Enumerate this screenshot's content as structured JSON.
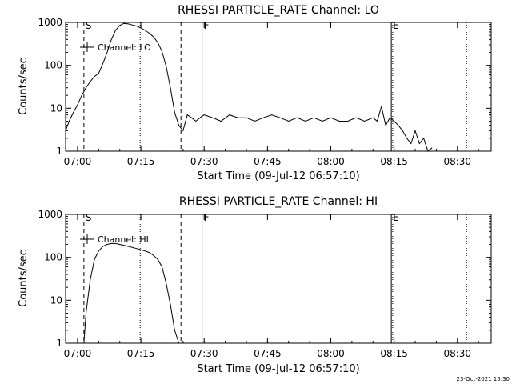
{
  "chart_data": [
    {
      "type": "line",
      "title": "RHESSI PARTICLE_RATE Channel: LO",
      "xlabel": "Start Time (09-Jul-12 06:57:10)",
      "ylabel": "Counts/sec",
      "yscale": "log",
      "ylim": [
        1,
        1000
      ],
      "ytick_labels": [
        "1",
        "10",
        "100",
        "1000"
      ],
      "xlim": [
        "06:57:10",
        "08:38:00"
      ],
      "xtick_labels": [
        "07:00",
        "07:15",
        "07:30",
        "07:45",
        "08:00",
        "08:15",
        "08:30"
      ],
      "legend": {
        "label": "Channel: LO",
        "placement": "upper-left"
      },
      "markers": [
        {
          "label": "S",
          "time": "07:01:30",
          "style": "dashed"
        },
        {
          "label": "",
          "time": "07:14:50",
          "style": "dotted"
        },
        {
          "label": "",
          "time": "07:24:30",
          "style": "dashed"
        },
        {
          "label": "F",
          "time": "07:29:30",
          "style": "solid"
        },
        {
          "label": "E",
          "time": "08:14:20",
          "style": "solid"
        },
        {
          "label": "",
          "time": "08:14:40",
          "style": "dotted"
        },
        {
          "label": "",
          "time": "08:32:10",
          "style": "dotted"
        }
      ],
      "series": [
        {
          "name": "Channel: LO",
          "x": [
            "06:57:10",
            "06:58:00",
            "06:59:00",
            "07:00:00",
            "07:01:00",
            "07:02:00",
            "07:03:00",
            "07:04:00",
            "07:05:00",
            "07:06:00",
            "07:07:00",
            "07:08:00",
            "07:09:00",
            "07:10:00",
            "07:11:00",
            "07:12:00",
            "07:13:00",
            "07:14:00",
            "07:15:00",
            "07:16:00",
            "07:17:00",
            "07:18:00",
            "07:19:00",
            "07:20:00",
            "07:21:00",
            "07:22:00",
            "07:23:00",
            "07:24:00",
            "07:25:00",
            "07:26:00",
            "07:27:00",
            "07:28:00",
            "07:29:00",
            "07:30:00",
            "07:32:00",
            "07:34:00",
            "07:36:00",
            "07:38:00",
            "07:40:00",
            "07:42:00",
            "07:44:00",
            "07:46:00",
            "07:48:00",
            "07:50:00",
            "07:52:00",
            "07:54:00",
            "07:56:00",
            "07:58:00",
            "08:00:00",
            "08:02:00",
            "08:04:00",
            "08:06:00",
            "08:08:00",
            "08:10:00",
            "08:11:00",
            "08:12:00",
            "08:13:00",
            "08:14:00",
            "08:15:00",
            "08:16:00",
            "08:17:00",
            "08:18:00",
            "08:19:00",
            "08:20:00",
            "08:21:00",
            "08:22:00",
            "08:23:00",
            "08:24:00"
          ],
          "y": [
            3,
            5,
            8,
            12,
            20,
            30,
            42,
            55,
            65,
            110,
            200,
            400,
            650,
            850,
            950,
            920,
            870,
            820,
            740,
            650,
            560,
            460,
            340,
            210,
            95,
            30,
            8,
            4,
            3,
            7,
            6,
            5,
            6,
            7,
            6,
            5,
            7,
            6,
            6,
            5,
            6,
            7,
            6,
            5,
            6,
            5,
            6,
            5,
            6,
            5,
            5,
            6,
            5,
            6,
            5,
            11,
            4,
            6,
            5,
            4,
            3,
            2,
            1.5,
            3,
            1.5,
            2,
            1,
            1.2
          ]
        }
      ]
    },
    {
      "type": "line",
      "title": "RHESSI PARTICLE_RATE Channel: HI",
      "xlabel": "Start Time (09-Jul-12 06:57:10)",
      "ylabel": "Counts/sec",
      "yscale": "log",
      "ylim": [
        1,
        1000
      ],
      "ytick_labels": [
        "1",
        "10",
        "100",
        "1000"
      ],
      "xlim": [
        "06:57:10",
        "08:38:00"
      ],
      "xtick_labels": [
        "07:00",
        "07:15",
        "07:30",
        "07:45",
        "08:00",
        "08:15",
        "08:30"
      ],
      "legend": {
        "label": "Channel: HI",
        "placement": "upper-left"
      },
      "markers": [
        {
          "label": "S",
          "time": "07:01:30",
          "style": "dashed"
        },
        {
          "label": "",
          "time": "07:14:50",
          "style": "dotted"
        },
        {
          "label": "",
          "time": "07:24:30",
          "style": "dashed"
        },
        {
          "label": "F",
          "time": "07:29:30",
          "style": "solid"
        },
        {
          "label": "E",
          "time": "08:14:20",
          "style": "solid"
        },
        {
          "label": "",
          "time": "08:14:40",
          "style": "dotted"
        },
        {
          "label": "",
          "time": "08:32:10",
          "style": "dotted"
        }
      ],
      "series": [
        {
          "name": "Channel: HI",
          "x": [
            "07:01:30",
            "07:02:00",
            "07:03:00",
            "07:04:00",
            "07:05:00",
            "07:06:00",
            "07:07:00",
            "07:08:00",
            "07:09:00",
            "07:10:00",
            "07:11:00",
            "07:12:00",
            "07:13:00",
            "07:14:00",
            "07:15:00",
            "07:16:00",
            "07:17:00",
            "07:18:00",
            "07:19:00",
            "07:20:00",
            "07:21:00",
            "07:22:00",
            "07:23:00",
            "07:24:00"
          ],
          "y": [
            1,
            5,
            30,
            90,
            140,
            180,
            200,
            210,
            210,
            200,
            190,
            180,
            170,
            160,
            150,
            140,
            130,
            110,
            90,
            60,
            25,
            8,
            2,
            1
          ]
        }
      ]
    }
  ],
  "footer": {
    "timestamp": "23-Oct-2021 15:30"
  }
}
